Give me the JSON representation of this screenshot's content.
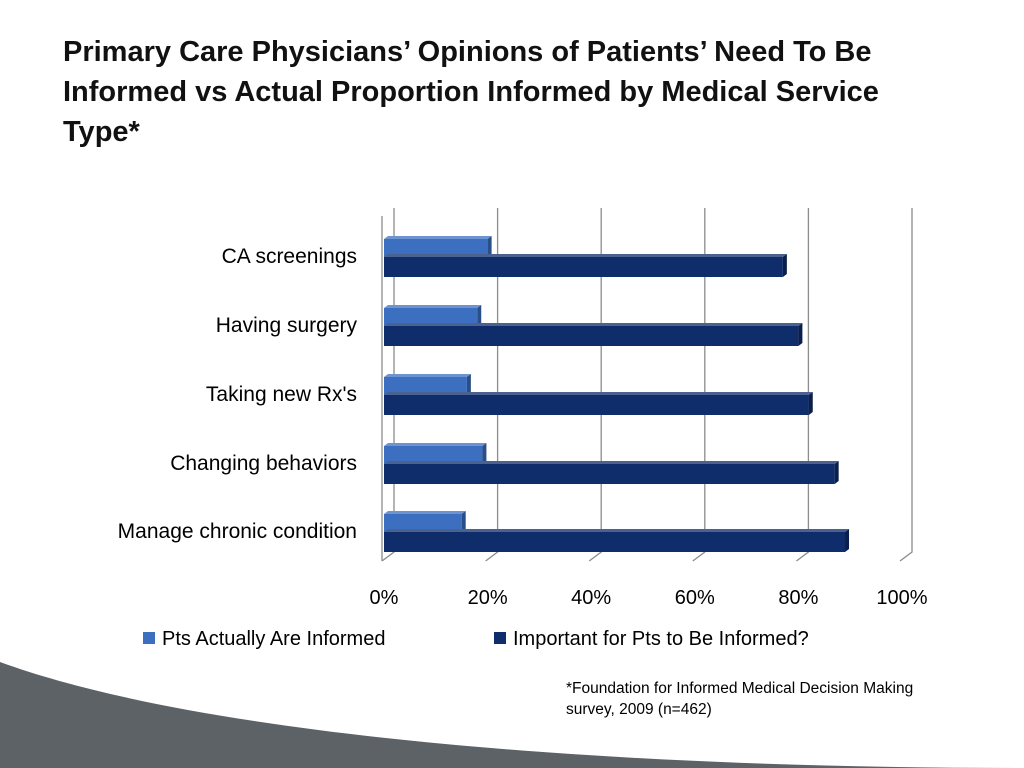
{
  "slide": {
    "title": "Primary Care Physicians’ Opinions of Patients’ Need To Be Informed vs Actual Proportion Informed by Medical Service Type*",
    "footnote_line1": "*Foundation for Informed Medical Decision Making",
    "footnote_line2": "survey,  2009 (n=462)"
  },
  "colors": {
    "series_informed": "#3c6fc0",
    "series_important": "#0f2d6b",
    "gridline": "#8c8c8c",
    "footer_band": "#5c6266"
  },
  "chart_data": {
    "type": "bar",
    "orientation": "horizontal",
    "title": "",
    "categories": [
      "CA screenings",
      "Having surgery",
      "Taking new Rx's",
      "Changing behaviors",
      "Manage chronic condition"
    ],
    "series": [
      {
        "name": "Pts Actually Are Informed",
        "values": [
          20,
          18,
          16,
          19,
          15
        ]
      },
      {
        "name": "Important for Pts to Be Informed?",
        "values": [
          77,
          80,
          82,
          87,
          89
        ]
      }
    ],
    "xlim": [
      0,
      100
    ],
    "x_ticks": [
      "0%",
      "20%",
      "40%",
      "60%",
      "80%",
      "100%"
    ],
    "x_tick_values": [
      0,
      20,
      40,
      60,
      80,
      100
    ],
    "grid": true,
    "legend_position": "bottom"
  }
}
